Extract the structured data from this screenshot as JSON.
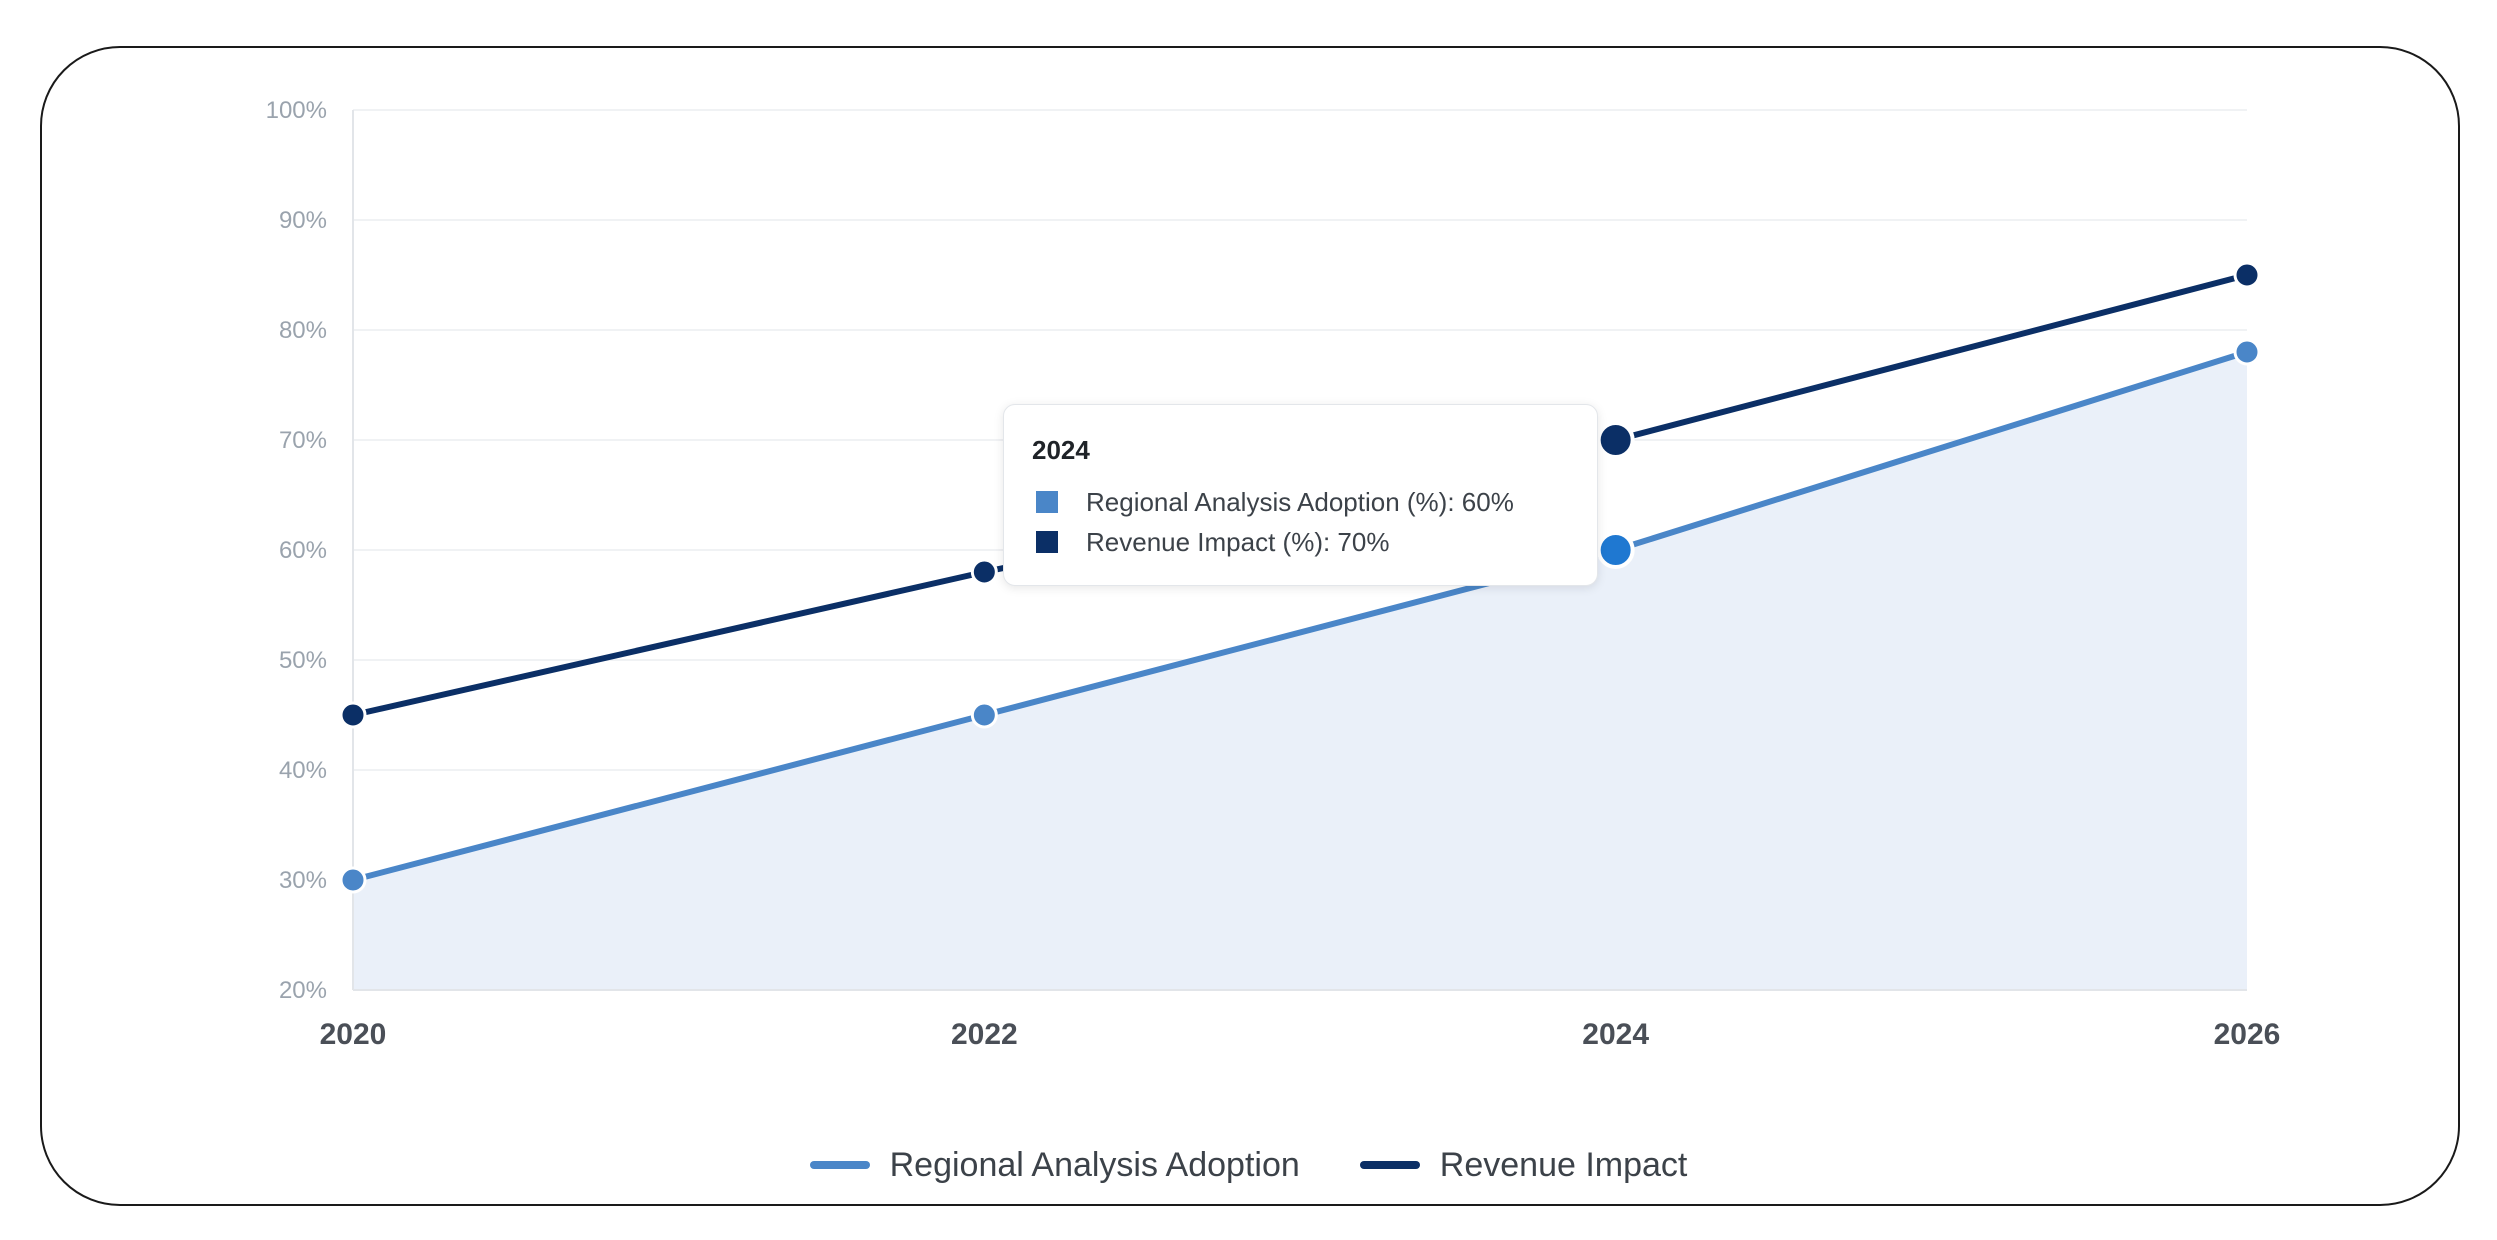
{
  "chart_data": {
    "type": "line",
    "x": [
      "2020",
      "2022",
      "2024",
      "2026"
    ],
    "series": [
      {
        "name": "Regional Analysis Adoption",
        "values": [
          30,
          45,
          60,
          78
        ],
        "color": "#4a86c8",
        "area": true,
        "area_color": "#eaf0f9"
      },
      {
        "name": "Revenue Impact",
        "values": [
          45,
          58,
          70,
          85
        ],
        "color": "#0b2f66",
        "area": false
      }
    ],
    "ylim": [
      20,
      100
    ],
    "yticks": [
      20,
      30,
      40,
      50,
      60,
      70,
      80,
      90,
      100
    ],
    "ytick_labels": [
      "20%",
      "30%",
      "40%",
      "50%",
      "60%",
      "70%",
      "80%",
      "90%",
      "100%"
    ],
    "xtick_labels": [
      "2020",
      "2022",
      "2024",
      "2026"
    ],
    "title": "",
    "xlabel": "",
    "ylabel": "",
    "grid": true,
    "legend_position": "bottom-center",
    "highlight_index": 2,
    "highlight_color": "#1f78d1"
  },
  "tooltip": {
    "title": "2024",
    "rows": [
      {
        "label": "Regional Analysis Adoption (%): 60%",
        "color": "#4a86c8"
      },
      {
        "label": "Revenue Impact (%): 70%",
        "color": "#0b2f66"
      }
    ]
  },
  "legend": [
    {
      "label": "Regional Analysis Adoption",
      "color": "#4a86c8"
    },
    {
      "label": "Revenue Impact",
      "color": "#0b2f66"
    }
  ]
}
